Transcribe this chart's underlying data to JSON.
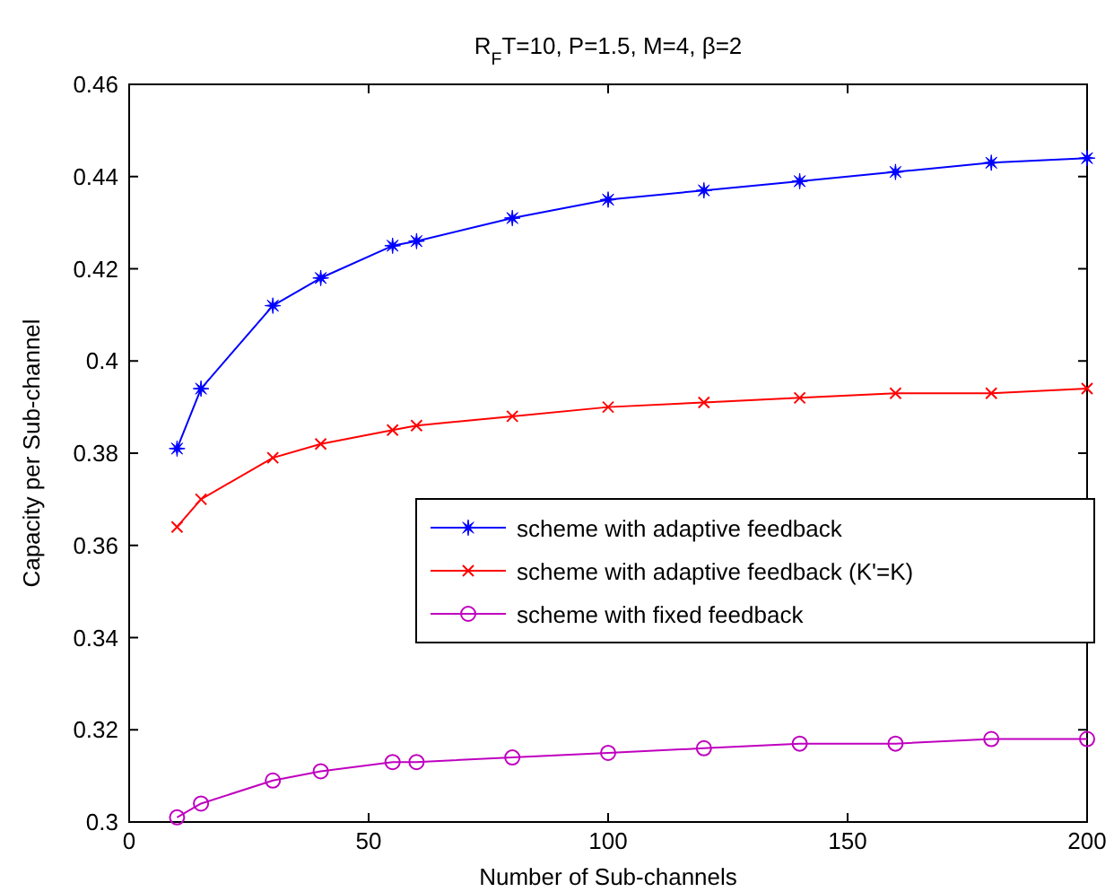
{
  "chart_data": {
    "type": "line",
    "title": "R$_{F}$T=10, P=1.5, M=4, β=2",
    "xlabel": "Number of Sub-channels",
    "ylabel": "Capacity per Sub-channel",
    "x": [
      10,
      15,
      30,
      40,
      55,
      60,
      80,
      100,
      120,
      140,
      160,
      180,
      200
    ],
    "series": [
      {
        "name": "scheme with adaptive feedback",
        "color": "#0000ff",
        "marker": "star",
        "values": [
          0.381,
          0.394,
          0.412,
          0.418,
          0.425,
          0.426,
          0.431,
          0.435,
          0.437,
          0.439,
          0.441,
          0.443,
          0.444
        ]
      },
      {
        "name": "scheme with adaptive feedback (K'=K)",
        "color": "#ff0000",
        "marker": "cross",
        "values": [
          0.364,
          0.37,
          0.379,
          0.382,
          0.385,
          0.386,
          0.388,
          0.39,
          0.391,
          0.392,
          0.393,
          0.393,
          0.394
        ]
      },
      {
        "name": "scheme with fixed feedback",
        "color": "#bf00bf",
        "marker": "circle",
        "values": [
          0.301,
          0.304,
          0.309,
          0.311,
          0.313,
          0.313,
          0.314,
          0.315,
          0.316,
          0.317,
          0.317,
          0.318,
          0.318
        ]
      }
    ],
    "xlim": [
      0,
      200
    ],
    "xticks": [
      0,
      50,
      100,
      150,
      200
    ],
    "ylim": [
      0.3,
      0.46
    ],
    "yticks": [
      0.3,
      0.32,
      0.34,
      0.36,
      0.38,
      0.4,
      0.42,
      0.44,
      0.46
    ],
    "grid": false,
    "legend": "right",
    "line_style": "solid"
  }
}
